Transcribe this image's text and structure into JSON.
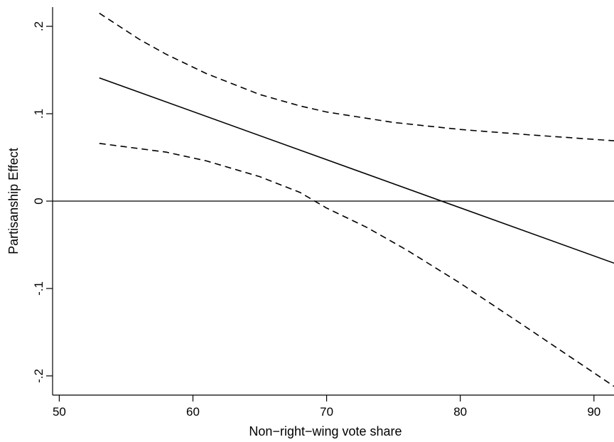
{
  "chart_data": {
    "type": "line",
    "title": "",
    "xlabel": "Non−right−wing vote share",
    "ylabel": "Partisanship Effect",
    "xlim": [
      49.5,
      91.5
    ],
    "ylim": [
      -0.222,
      0.222
    ],
    "xticks": [
      {
        "value": 50,
        "label": "50"
      },
      {
        "value": 60,
        "label": "60"
      },
      {
        "value": 70,
        "label": "70"
      },
      {
        "value": 80,
        "label": "80"
      },
      {
        "value": 90,
        "label": "90"
      }
    ],
    "yticks": [
      {
        "value": -0.2,
        "label": "-.2"
      },
      {
        "value": -0.1,
        "label": "-.1"
      },
      {
        "value": 0,
        "label": "0"
      },
      {
        "value": 0.1,
        "label": ".1"
      },
      {
        "value": 0.2,
        "label": ".2"
      }
    ],
    "reference_line": {
      "y": 0
    },
    "grid": false,
    "legend": "none",
    "series": [
      {
        "role": "estimate",
        "style": "solid",
        "x": [
          53,
          91.5
        ],
        "y": [
          0.141,
          -0.071
        ]
      },
      {
        "role": "upper_ci",
        "style": "dashed",
        "x": [
          53,
          56,
          58,
          61,
          65,
          68,
          70,
          75,
          80,
          85,
          91.5
        ],
        "y": [
          0.215,
          0.185,
          0.168,
          0.146,
          0.122,
          0.109,
          0.102,
          0.09,
          0.082,
          0.076,
          0.069
        ]
      },
      {
        "role": "lower_ci",
        "style": "dashed",
        "x": [
          53,
          58,
          61,
          65,
          68,
          70,
          73,
          76,
          80,
          85,
          91.5
        ],
        "y": [
          0.066,
          0.056,
          0.046,
          0.028,
          0.01,
          -0.008,
          -0.03,
          -0.056,
          -0.094,
          -0.145,
          -0.212
        ]
      }
    ],
    "colors": {
      "line": "#000000",
      "background": "#ffffff"
    }
  }
}
